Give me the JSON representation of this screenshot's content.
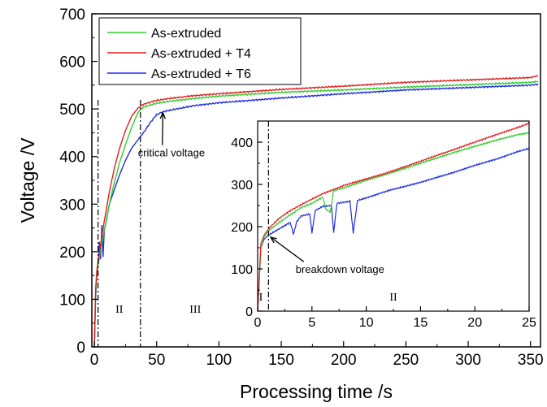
{
  "chart_data": [
    {
      "type": "line",
      "xlabel": "Processing time /s",
      "ylabel": "Voltage /V",
      "xlim": [
        -2,
        358
      ],
      "ylim": [
        0,
        700
      ],
      "xticks": [
        0,
        50,
        100,
        150,
        200,
        250,
        300,
        350
      ],
      "yticks": [
        0,
        100,
        200,
        300,
        400,
        500,
        600,
        700
      ],
      "grid": false,
      "legend_position": "top-left",
      "series": [
        {
          "name": "As-extruded",
          "color": "#2ecc2e",
          "x": [
            0,
            1,
            2,
            3,
            5,
            8,
            12,
            16,
            20,
            25,
            30,
            35,
            38,
            42,
            50,
            60,
            80,
            100,
            150,
            200,
            250,
            300,
            350,
            356
          ],
          "y": [
            0,
            110,
            150,
            170,
            205,
            245,
            300,
            345,
            385,
            425,
            462,
            492,
            502,
            506,
            512,
            516,
            522,
            527,
            535,
            540,
            546,
            551,
            556,
            558
          ]
        },
        {
          "name": "As-extruded + T4",
          "color": "#e01e1e",
          "x": [
            0,
            1,
            2,
            3,
            5,
            8,
            12,
            16,
            20,
            25,
            30,
            35,
            38,
            42,
            50,
            60,
            80,
            100,
            150,
            200,
            250,
            300,
            350,
            356
          ],
          "y": [
            0,
            120,
            160,
            180,
            215,
            265,
            325,
            375,
            415,
            455,
            485,
            502,
            508,
            512,
            518,
            522,
            528,
            532,
            541,
            548,
            556,
            561,
            566,
            570
          ]
        },
        {
          "name": "As-extruded + T6",
          "color": "#1e2ee0",
          "x": [
            0,
            1,
            2,
            3,
            4,
            5,
            6,
            7,
            8,
            10,
            12,
            16,
            20,
            25,
            30,
            35,
            40,
            45,
            50,
            55,
            60,
            70,
            80,
            100,
            150,
            200,
            250,
            300,
            350,
            356
          ],
          "y": [
            0,
            100,
            150,
            175,
            220,
            185,
            255,
            190,
            245,
            270,
            300,
            330,
            360,
            392,
            418,
            435,
            452,
            472,
            488,
            494,
            497,
            502,
            507,
            513,
            523,
            532,
            540,
            545,
            550,
            552
          ]
        }
      ],
      "annotations": [
        {
          "text": "critical voltage",
          "x": 35,
          "y": 400,
          "arrow_to_x": 55,
          "arrow_to_y": 492
        }
      ],
      "dashed_lines_x": [
        3,
        37
      ],
      "regions": [
        {
          "label": "II",
          "x": 20,
          "y": 72
        },
        {
          "label": "III",
          "x": 81,
          "y": 72
        }
      ]
    },
    {
      "type": "line",
      "role": "inset",
      "xlim": [
        0,
        25
      ],
      "ylim": [
        0,
        450
      ],
      "xticks": [
        0,
        5,
        10,
        15,
        20,
        25
      ],
      "yticks": [
        0,
        100,
        200,
        300,
        400
      ],
      "series": [
        {
          "name": "As-extruded",
          "color": "#2ecc2e",
          "x": [
            0,
            0.3,
            0.6,
            1,
            2,
            3,
            4,
            5,
            6,
            6.3,
            6.7,
            7,
            8,
            10,
            12,
            15,
            18,
            20,
            22,
            24,
            25
          ],
          "y": [
            0,
            150,
            175,
            190,
            210,
            228,
            245,
            255,
            270,
            240,
            235,
            285,
            292,
            310,
            325,
            350,
            375,
            390,
            405,
            418,
            422
          ]
        },
        {
          "name": "As-extruded + T4",
          "color": "#e01e1e",
          "x": [
            0,
            0.3,
            0.6,
            1,
            2,
            3,
            4,
            5,
            6,
            7,
            8,
            10,
            12,
            15,
            18,
            20,
            22,
            24,
            25
          ],
          "y": [
            0,
            160,
            180,
            195,
            220,
            238,
            252,
            265,
            278,
            288,
            298,
            313,
            328,
            355,
            382,
            400,
            418,
            435,
            445
          ]
        },
        {
          "name": "As-extruded + T6",
          "color": "#1e2ee0",
          "x": [
            0,
            0.3,
            0.6,
            1,
            2,
            3,
            3.3,
            3.6,
            4,
            4.8,
            5,
            5.3,
            6,
            6.8,
            7,
            7.3,
            8,
            8.5,
            8.8,
            9.2,
            10,
            12,
            15,
            18,
            20,
            22,
            24,
            25
          ],
          "y": [
            0,
            150,
            170,
            180,
            195,
            210,
            182,
            212,
            225,
            230,
            185,
            238,
            248,
            250,
            185,
            255,
            258,
            260,
            185,
            262,
            268,
            285,
            305,
            328,
            345,
            360,
            378,
            385
          ]
        }
      ],
      "annotations": [
        {
          "text": "breakdown voltage",
          "x": 3.5,
          "y": 90,
          "arrow_to_x": 1.2,
          "arrow_to_y": 175
        }
      ],
      "dashed_lines_x": [
        1
      ],
      "regions": [
        {
          "label": "I",
          "x": 0.3,
          "y": 25
        },
        {
          "label": "II",
          "x": 12.5,
          "y": 25
        }
      ]
    }
  ]
}
